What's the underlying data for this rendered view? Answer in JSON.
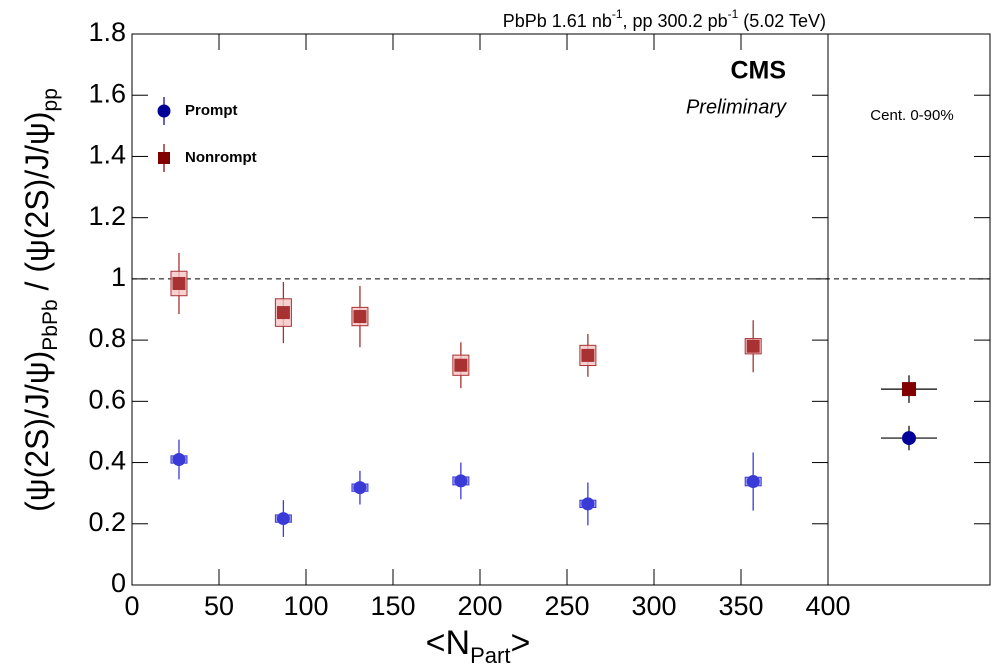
{
  "chart_data": {
    "type": "scatter",
    "title_parts": [
      "PbPb 1.61 nb",
      "-1",
      ", pp 300.2 pb",
      "-1",
      " (5.02 TeV)"
    ],
    "experiment": "CMS",
    "status": "Preliminary",
    "x_label_parts": [
      "<N",
      "Part",
      ">"
    ],
    "y_label_parts": [
      "(ψ(2S)/J/ψ)",
      "PbPb",
      " / (ψ(2S)/J/ψ)",
      "pp"
    ],
    "integrated_label": "Cent. 0-90%",
    "xlim": [
      0,
      400
    ],
    "xticks": [
      0,
      50,
      100,
      150,
      200,
      250,
      300,
      350,
      400
    ],
    "ylim": [
      0,
      1.8
    ],
    "yticks": [
      0,
      0.2,
      0.4,
      0.6,
      0.8,
      1,
      1.2,
      1.4,
      1.6,
      1.8
    ],
    "ref_line": 1,
    "series": [
      {
        "name": "Prompt",
        "marker": "circle",
        "color": "#3a3ad6",
        "syst_color": "#8888ee",
        "integrated_color": "#000099",
        "x": [
          27,
          87,
          131,
          189,
          262,
          357
        ],
        "values": [
          0.41,
          0.217,
          0.318,
          0.34,
          0.265,
          0.338
        ],
        "errors": [
          0.065,
          0.06,
          0.055,
          0.06,
          0.07,
          0.095
        ],
        "syst": [
          0.012,
          0.012,
          0.012,
          0.013,
          0.012,
          0.014
        ],
        "integrated_value": 0.48,
        "integrated_error": 0.04
      },
      {
        "name": "Nonrompt",
        "marker": "square",
        "color": "#a83232",
        "syst_color": "#f5c4c4",
        "integrated_color": "#800000",
        "x": [
          27,
          87,
          131,
          189,
          262,
          357
        ],
        "values": [
          0.985,
          0.89,
          0.877,
          0.718,
          0.75,
          0.78
        ],
        "errors": [
          0.1,
          0.1,
          0.1,
          0.075,
          0.07,
          0.085
        ],
        "syst": [
          0.04,
          0.045,
          0.03,
          0.033,
          0.033,
          0.025
        ],
        "integrated_value": 0.64,
        "integrated_error": 0.045
      }
    ]
  }
}
